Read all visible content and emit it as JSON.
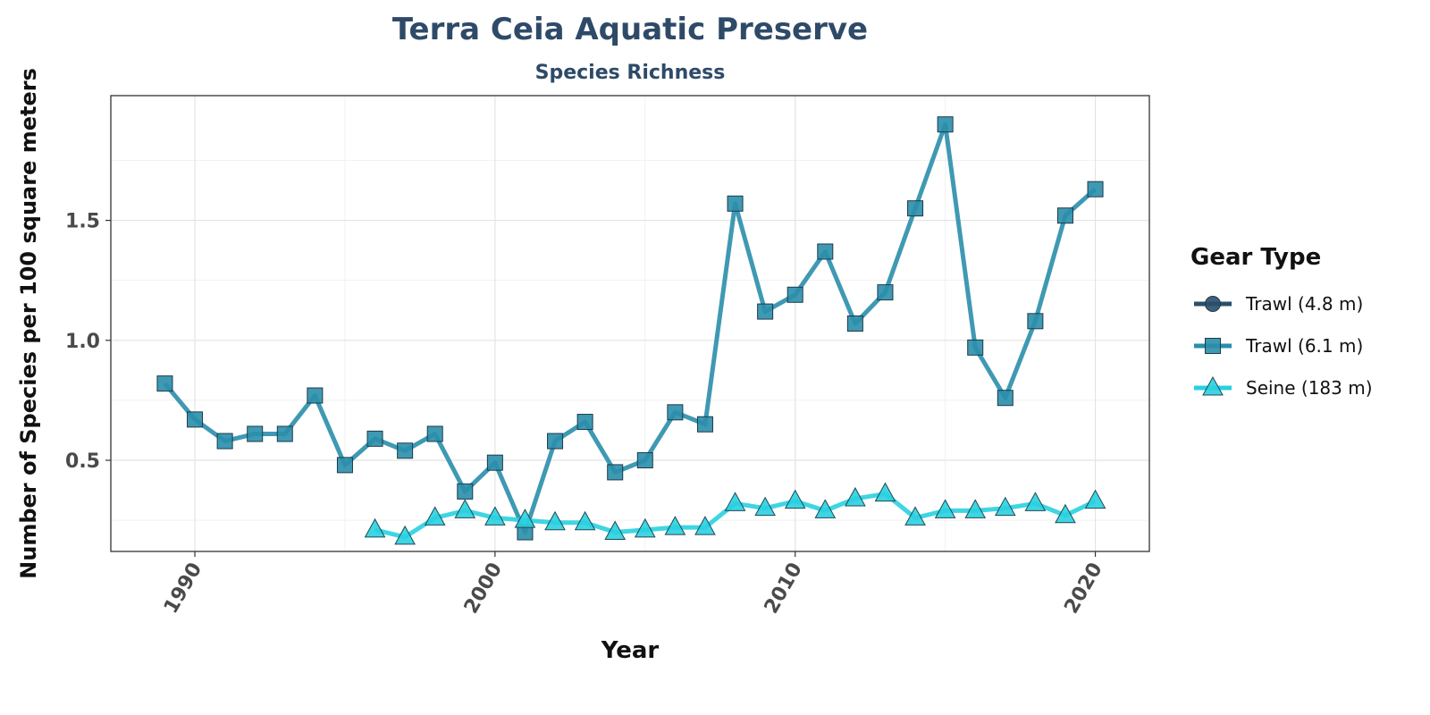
{
  "chart_data": {
    "type": "line",
    "title": "Terra Ceia Aquatic Preserve",
    "subtitle": "Species Richness",
    "xlabel": "Year",
    "ylabel": "Number of Species per 100 square meters",
    "xlim": [
      1987.2,
      2021.8
    ],
    "ylim": [
      0.12,
      2.02
    ],
    "x_ticks": [
      1990,
      2000,
      2010,
      2020
    ],
    "y_ticks": [
      0.5,
      1.0,
      1.5
    ],
    "y_tick_labels": [
      "0.5",
      "1.0",
      "1.5"
    ],
    "grid": true,
    "legend": {
      "title": "Gear Type",
      "position": "right"
    },
    "series": [
      {
        "name": "Trawl (4.8 m)",
        "marker": "circle",
        "color": "#2b4f6b",
        "x": [],
        "y": []
      },
      {
        "name": "Trawl (6.1 m)",
        "marker": "square",
        "color": "#2a8eab",
        "x": [
          1989,
          1990,
          1991,
          1992,
          1993,
          1994,
          1995,
          1996,
          1997,
          1998,
          1999,
          2000,
          2001,
          2002,
          2003,
          2004,
          2005,
          2006,
          2007,
          2008,
          2009,
          2010,
          2011,
          2012,
          2013,
          2014,
          2015,
          2016,
          2017,
          2018,
          2019,
          2020
        ],
        "y": [
          0.82,
          0.67,
          0.58,
          0.61,
          0.61,
          0.77,
          0.48,
          0.59,
          0.54,
          0.61,
          0.37,
          0.49,
          0.2,
          0.58,
          0.66,
          0.45,
          0.5,
          0.7,
          0.65,
          1.57,
          1.12,
          1.19,
          1.37,
          1.07,
          1.2,
          1.55,
          1.9,
          0.97,
          0.76,
          1.08,
          1.52,
          1.63
        ]
      },
      {
        "name": "Seine (183 m)",
        "marker": "triangle",
        "color": "#2ad0e0",
        "x": [
          1996,
          1997,
          1998,
          1999,
          2000,
          2001,
          2002,
          2003,
          2004,
          2005,
          2006,
          2007,
          2008,
          2009,
          2010,
          2011,
          2012,
          2013,
          2014,
          2015,
          2016,
          2017,
          2018,
          2019,
          2020
        ],
        "y": [
          0.21,
          0.18,
          0.26,
          0.29,
          0.26,
          0.25,
          0.24,
          0.24,
          0.2,
          0.21,
          0.22,
          0.22,
          0.32,
          0.3,
          0.33,
          0.29,
          0.34,
          0.36,
          0.26,
          0.29,
          0.29,
          0.3,
          0.32,
          0.27,
          0.33
        ]
      }
    ]
  }
}
